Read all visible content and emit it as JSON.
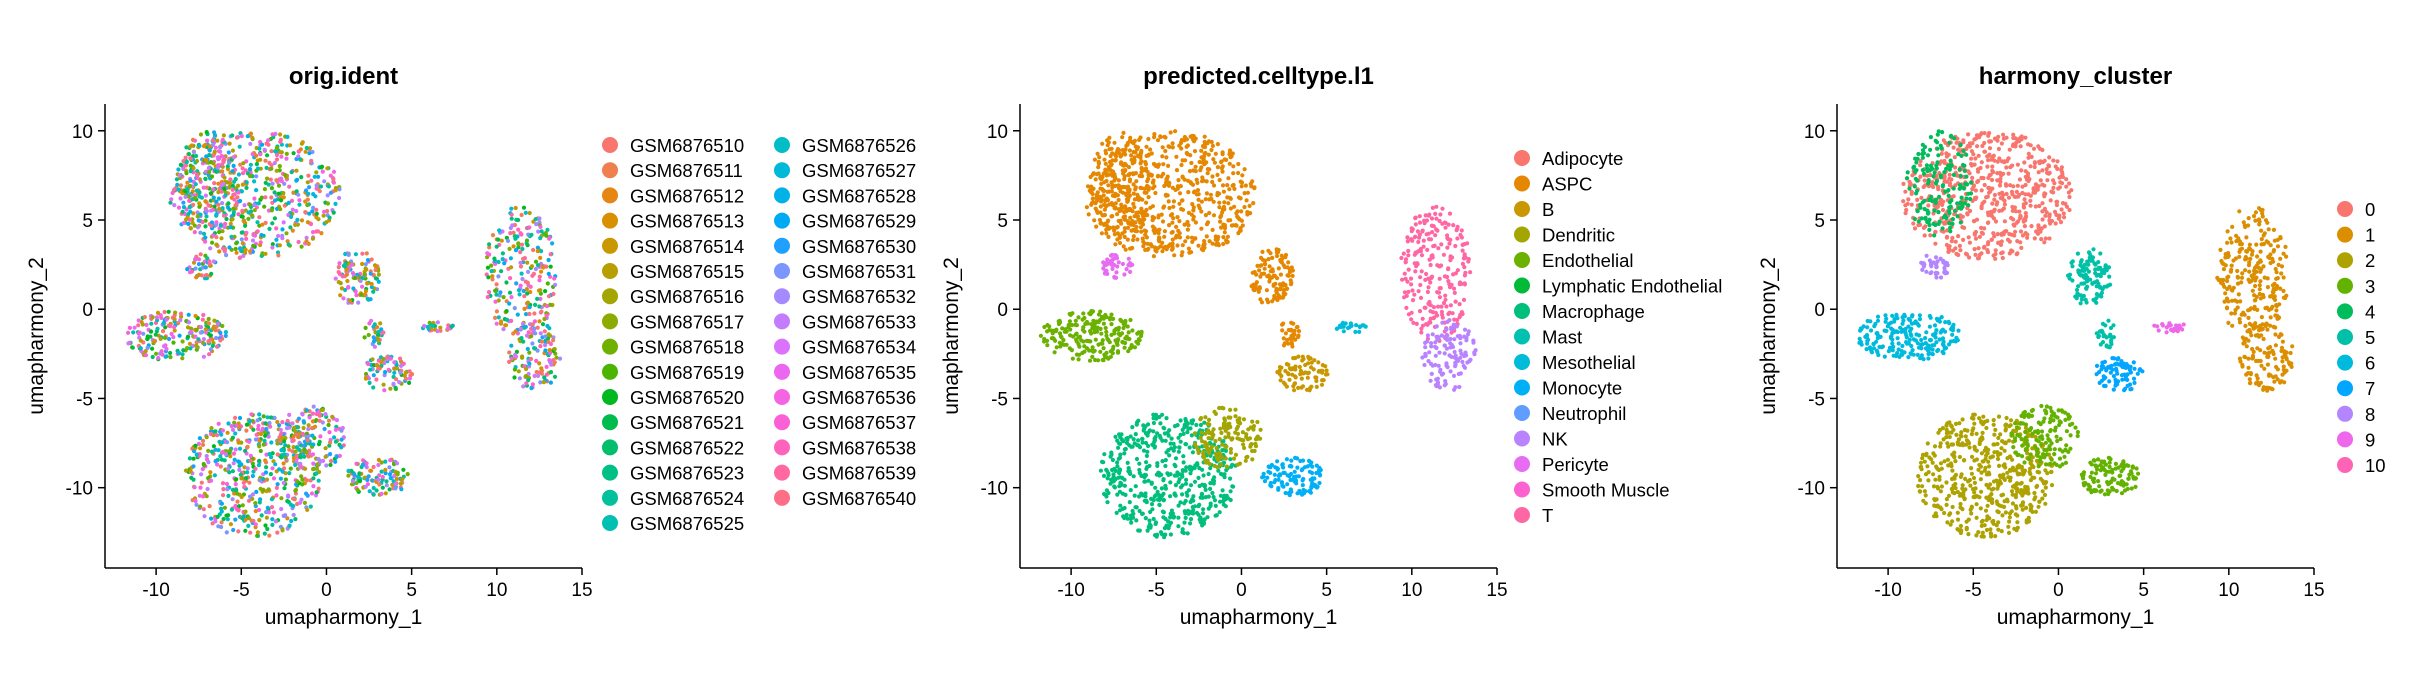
{
  "figure": {
    "background": "#ffffff"
  },
  "chart_data": [
    {
      "type": "scatter",
      "title": "orig.ident",
      "xlabel": "umapharmony_1",
      "ylabel": "umapharmony_2",
      "xlim": [
        -13,
        15
      ],
      "ylim": [
        -14.5,
        11.5
      ],
      "xticks": [
        -10,
        -5,
        0,
        5,
        10,
        15
      ],
      "yticks": [
        -10,
        -5,
        0,
        5,
        10
      ],
      "grid": false,
      "legend_position": "right",
      "legend_columns": 2,
      "color_mode": "mixed",
      "categories": [
        "GSM6876510",
        "GSM6876511",
        "GSM6876512",
        "GSM6876513",
        "GSM6876514",
        "GSM6876515",
        "GSM6876516",
        "GSM6876517",
        "GSM6876518",
        "GSM6876519",
        "GSM6876520",
        "GSM6876521",
        "GSM6876522",
        "GSM6876523",
        "GSM6876524",
        "GSM6876525",
        "GSM6876526",
        "GSM6876527",
        "GSM6876528",
        "GSM6876529",
        "GSM6876530",
        "GSM6876531",
        "GSM6876532",
        "GSM6876533",
        "GSM6876534",
        "GSM6876535",
        "GSM6876536",
        "GSM6876537",
        "GSM6876538",
        "GSM6876539",
        "GSM6876540"
      ],
      "colors": [
        "#F8766D",
        "#F07F4F",
        "#E68613",
        "#D89000",
        "#C99800",
        "#B79F00",
        "#A3A500",
        "#8CAB00",
        "#6FB000",
        "#4BB400",
        "#00B81F",
        "#00BB4E",
        "#00BE6C",
        "#00C085",
        "#00C19C",
        "#00C0B2",
        "#00BDC6",
        "#00B8D8",
        "#00B2E8",
        "#00A9F4",
        "#1F9FFE",
        "#7C96FF",
        "#A58AFF",
        "#C47CFF",
        "#DA72FB",
        "#EB67F0",
        "#F564E3",
        "#FB61D7",
        "#FF63BB",
        "#FF68A0",
        "#FE6E86"
      ]
    },
    {
      "type": "scatter",
      "title": "predicted.celltype.l1",
      "xlabel": "umapharmony_1",
      "ylabel": "umapharmony_2",
      "xlim": [
        -13,
        15
      ],
      "ylim": [
        -14.5,
        11.5
      ],
      "xticks": [
        -10,
        -5,
        0,
        5,
        10,
        15
      ],
      "yticks": [
        -10,
        -5,
        0,
        5,
        10
      ],
      "grid": false,
      "legend_position": "right",
      "legend_columns": 1,
      "color_mode": "by_region",
      "categories": [
        "Adipocyte",
        "ASPC",
        "B",
        "Dendritic",
        "Endothelial",
        "Lymphatic Endothelial",
        "Macrophage",
        "Mast",
        "Mesothelial",
        "Monocyte",
        "Neutrophil",
        "NK",
        "Pericyte",
        "Smooth Muscle",
        "T"
      ],
      "colors": [
        "#F8766D",
        "#E58700",
        "#C99800",
        "#A3A500",
        "#6BB100",
        "#00BA38",
        "#00BF7D",
        "#00C0AF",
        "#00BCD8",
        "#00B0F6",
        "#619CFF",
        "#B983FF",
        "#E76BF3",
        "#FD61D1",
        "#FF67A4"
      ],
      "region_colors": {
        "top": 1,
        "right_upper": 14,
        "right_lower": 11,
        "left": 4,
        "bottom": 6,
        "bottom_ne": 3,
        "bottom_e": 9,
        "center": 1,
        "center_low": 2,
        "center_ne": 1,
        "left_small": 12,
        "small_e": 8
      }
    },
    {
      "type": "scatter",
      "title": "harmony_cluster",
      "xlabel": "umapharmony_1",
      "ylabel": "umapharmony_2",
      "xlim": [
        -13,
        15
      ],
      "ylim": [
        -14.5,
        11.5
      ],
      "xticks": [
        -10,
        -5,
        0,
        5,
        10,
        15
      ],
      "yticks": [
        -10,
        -5,
        0,
        5,
        10
      ],
      "grid": false,
      "legend_position": "right",
      "legend_columns": 1,
      "color_mode": "by_region",
      "categories": [
        "0",
        "1",
        "2",
        "3",
        "4",
        "5",
        "6",
        "7",
        "8",
        "9",
        "10"
      ],
      "colors": [
        "#F8766D",
        "#DB8E00",
        "#AEA200",
        "#64B200",
        "#00BD5C",
        "#00C1A7",
        "#00BADE",
        "#00A6FF",
        "#B385FF",
        "#EF67EB",
        "#FF63B6"
      ],
      "region_colors": {
        "top": 0,
        "top_left": 4,
        "right_upper": 1,
        "right_lower": 1,
        "left": 6,
        "bottom": 2,
        "bottom_ne": 3,
        "bottom_e": 3,
        "center": 5,
        "center_low": 7,
        "center_ne": 5,
        "left_small": 8,
        "small_e": 9
      }
    }
  ]
}
